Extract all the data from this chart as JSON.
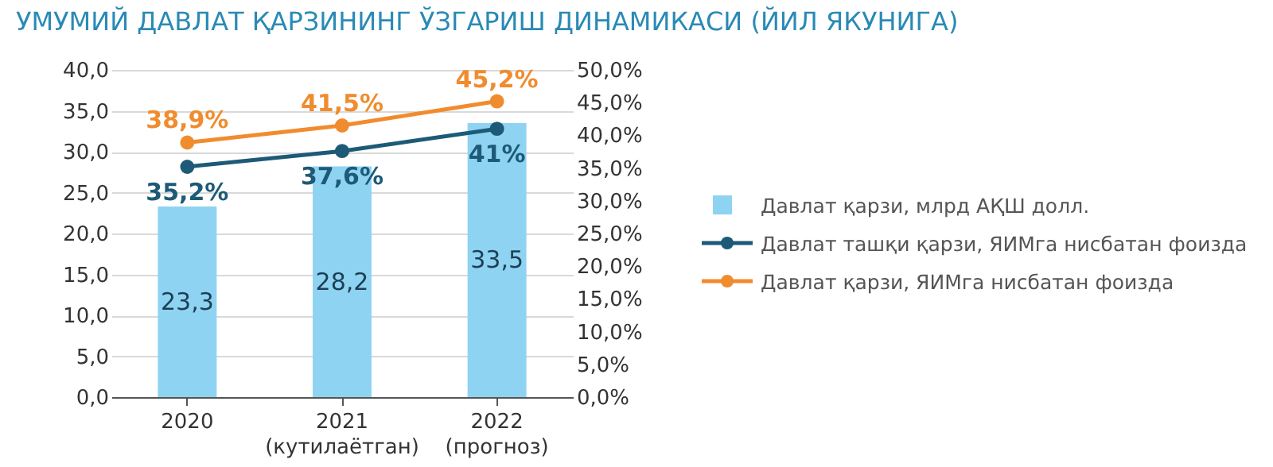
{
  "chart_data": {
    "type": "bar",
    "title": "УМУМИЙ ДАВЛАТ ҚАРЗИНИНГ ЎЗГАРИШ ДИНАМИКАСИ (ЙИЛ ЯКУНИГА)",
    "categories": [
      "2020",
      "2021\n(кутилаётган)",
      "2022\n(прогноз)"
    ],
    "series": [
      {
        "name": "Давлат қарзи, млрд АҚШ долл.",
        "color": "#8fd3f2",
        "values": [
          23.3,
          28.2,
          33.5
        ],
        "value_labels": [
          "23,3",
          "28,2",
          "33,5"
        ]
      },
      {
        "name": "Давлат ташқи қарзи, ЯИМга нисбатан фоизда",
        "type": "line",
        "axis": "y2",
        "color": "#1d5a78",
        "values": [
          35.2,
          37.6,
          41
        ],
        "value_labels": [
          "35,2%",
          "37,6%",
          "41%"
        ]
      },
      {
        "name": "Давлат қарзи, ЯИМга нисбатан фоизда",
        "type": "line",
        "axis": "y2",
        "color": "#f08c2e",
        "values": [
          38.9,
          41.5,
          45.2
        ],
        "value_labels": [
          "38,9%",
          "41,5%",
          "45,2%"
        ]
      }
    ],
    "ylim": [
      0,
      40
    ],
    "yticks": [
      {
        "value": 0,
        "label": "0,0"
      },
      {
        "value": 5,
        "label": "5,0"
      },
      {
        "value": 10,
        "label": "10,0"
      },
      {
        "value": 15,
        "label": "15,0"
      },
      {
        "value": 20,
        "label": "20,0"
      },
      {
        "value": 25,
        "label": "25,0"
      },
      {
        "value": 30,
        "label": "30,0"
      },
      {
        "value": 35,
        "label": "35,0"
      },
      {
        "value": 40,
        "label": "40,0"
      }
    ],
    "y2lim": [
      0,
      50
    ],
    "y2ticks": [
      {
        "value": 0,
        "label": "0,0%"
      },
      {
        "value": 5,
        "label": "5,0%"
      },
      {
        "value": 10,
        "label": "10,0%"
      },
      {
        "value": 15,
        "label": "15,0%"
      },
      {
        "value": 20,
        "label": "20,0%"
      },
      {
        "value": 25,
        "label": "25,0%"
      },
      {
        "value": 30,
        "label": "30,0%"
      },
      {
        "value": 35,
        "label": "35,0%"
      },
      {
        "value": 40,
        "label": "40,0%"
      },
      {
        "value": 45,
        "label": "45,0%"
      },
      {
        "value": 50,
        "label": "50,0%"
      }
    ],
    "grid": "y",
    "marker": "circle",
    "line_style": "solid",
    "legend": "right"
  }
}
